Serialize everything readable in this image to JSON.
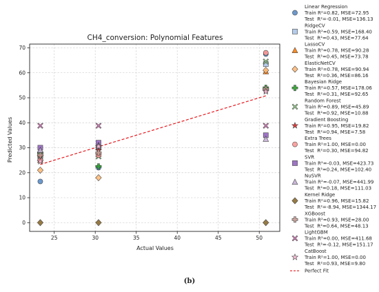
{
  "caption": "(b)",
  "chart_data": {
    "type": "scatter",
    "title": "CH4_conversion: Polynomial Features",
    "xlabel": "Actual Values",
    "ylabel": "Predicted Values",
    "xlim": [
      22.0,
      52.5
    ],
    "ylim": [
      -3.5,
      71.5
    ],
    "xticks": [
      25,
      30,
      35,
      40,
      45,
      50
    ],
    "yticks": [
      0,
      10,
      20,
      30,
      40,
      50,
      60,
      70
    ],
    "grid": true,
    "legend_position": "outside-right",
    "x": [
      23.3,
      30.4,
      50.8
    ],
    "series": [
      {
        "name": "Linear Regression",
        "stats": [
          "Train R²=0.82, MSE=72.95",
          "Test  R²=-0.01, MSE=136.13"
        ],
        "marker": "circle",
        "color": "#5b8fc9",
        "values": [
          16.5,
          22.0,
          67.5
        ]
      },
      {
        "name": "RidgeCV",
        "stats": [
          "Train R²=0.59, MSE=168.40",
          "Test  R²=0.43, MSE=77.64"
        ],
        "marker": "square",
        "color": "#aec7e8",
        "values": [
          26.0,
          30.0,
          63.5
        ]
      },
      {
        "name": "LassoCV",
        "stats": [
          "Train R²=0.78, MSE=90.28",
          "Test  R²=0.45, MSE=73.78"
        ],
        "marker": "triangle",
        "color": "#ff7f0e",
        "values": [
          25.0,
          27.5,
          60.5
        ]
      },
      {
        "name": "ElasticNetCV",
        "stats": [
          "Train R²=0.78, MSE=90.94",
          "Test  R²=0.36, MSE=86.16"
        ],
        "marker": "diamond",
        "color": "#ffbb78",
        "values": [
          21.0,
          18.0,
          61.0
        ]
      },
      {
        "name": "Bayesian Ridge",
        "stats": [
          "Train R²=0.57, MSE=178.06",
          "Test  R²=0.31, MSE=92.65"
        ],
        "marker": "plus",
        "color": "#2ca02c",
        "values": [
          28.0,
          22.5,
          54.0
        ]
      },
      {
        "name": "Random Forest",
        "stats": [
          "Train R²=0.89, MSE=45.89",
          "Test  R²=0.92, MSE=10.88"
        ],
        "marker": "x",
        "color": "#98df8a",
        "values": [
          27.0,
          26.5,
          64.5
        ]
      },
      {
        "name": "Gradient Boosting",
        "stats": [
          "Train R²=0.95, MSE=19.82",
          "Test  R²=0.94, MSE=7.58"
        ],
        "marker": "star",
        "color": "#d62728",
        "values": [
          26.5,
          29.0,
          53.0
        ]
      },
      {
        "name": "Extra Trees",
        "stats": [
          "Train R²=1.00, MSE=0.00",
          "Test  R²=0.30, MSE=94.82"
        ],
        "marker": "circle",
        "color": "#ff9896",
        "values": [
          25.0,
          27.0,
          68.0
        ]
      },
      {
        "name": "SVR",
        "stats": [
          "Train R²=-0.03, MSE=423.73",
          "Test  R²=0.24, MSE=102.40"
        ],
        "marker": "square",
        "color": "#9467bd",
        "values": [
          30.0,
          32.0,
          35.0
        ]
      },
      {
        "name": "NuSVR",
        "stats": [
          "Train R²=-0.07, MSE=441.99",
          "Test  R²=0.18, MSE=111.03"
        ],
        "marker": "triangle",
        "color": "#c5b0d5",
        "values": [
          29.0,
          31.0,
          33.5
        ]
      },
      {
        "name": "Kernel Ridge",
        "stats": [
          "Train R²=0.96, MSE=15.82",
          "Test  R²=-8.94, MSE=1344.17"
        ],
        "marker": "diamond",
        "color": "#8c6d31",
        "values": [
          0.0,
          0.0,
          0.0
        ]
      },
      {
        "name": "XGBoost",
        "stats": [
          "Train R²=0.93, MSE=28.00",
          "Test  R²=0.64, MSE=48.13"
        ],
        "marker": "plus",
        "color": "#c49c94",
        "values": [
          27.0,
          28.0,
          53.5
        ]
      },
      {
        "name": "LightGBM",
        "stats": [
          "Train R²=0.00, MSE=411.68",
          "Test  R²=-0.12, MSE=151.17"
        ],
        "marker": "x",
        "color": "#e377c2",
        "values": [
          38.8,
          38.8,
          38.8
        ]
      },
      {
        "name": "CatBoost",
        "stats": [
          "Train R²=1.00, MSE=0.00",
          "Test  R²=0.93, MSE=9.80"
        ],
        "marker": "star",
        "color": "#f7b6d2",
        "values": [
          24.5,
          30.5,
          52.5
        ]
      }
    ],
    "fit_line": {
      "name": "Perfect Fit",
      "color": "#e8161b",
      "x": [
        23.3,
        50.8
      ],
      "y": [
        23.3,
        50.8
      ]
    }
  }
}
